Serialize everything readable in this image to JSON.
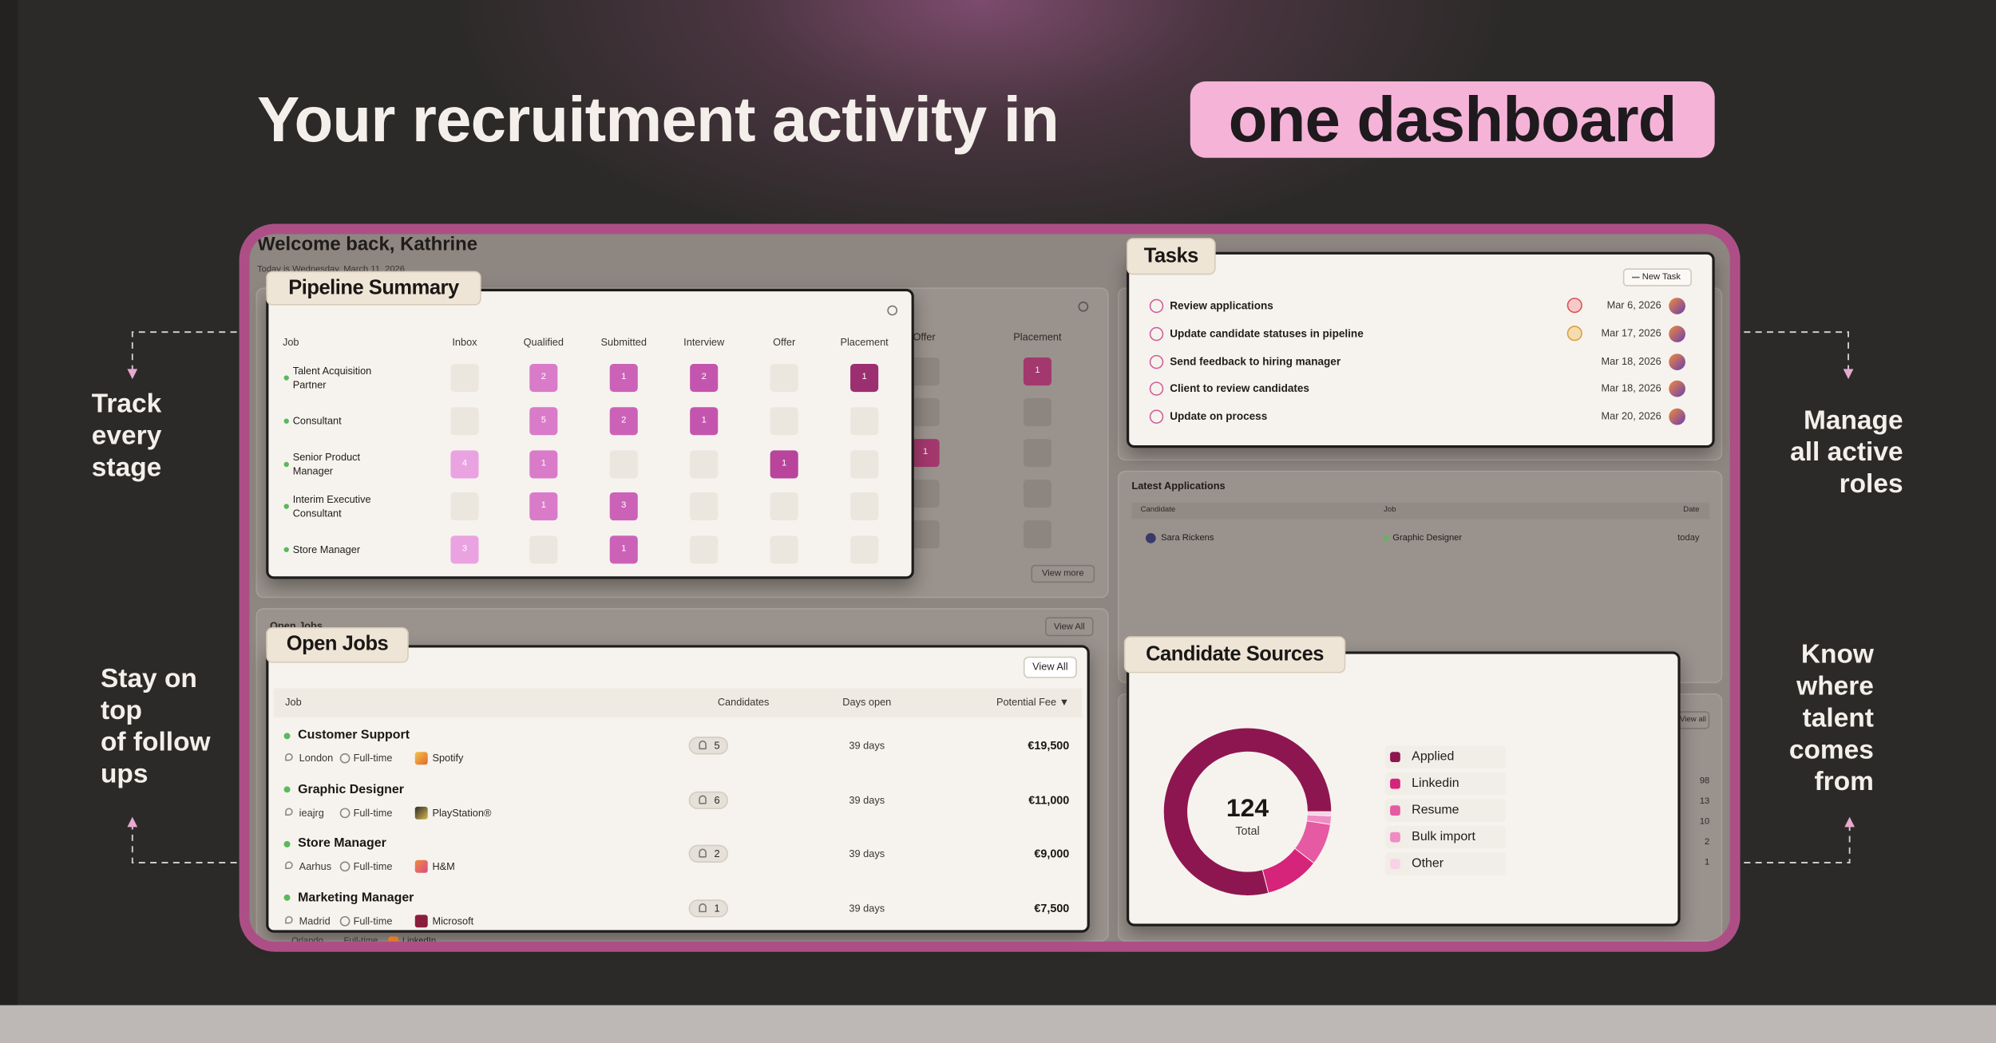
{
  "headline": "Your recruitment activity in",
  "headline_highlight": "one dashboard",
  "side_notes": {
    "track": [
      "Track",
      "every",
      "stage"
    ],
    "follow_ups": [
      "Stay on",
      "top",
      "of follow",
      "ups"
    ],
    "roles": [
      "Manage",
      "all active",
      "roles"
    ],
    "talent": [
      "Know",
      "where",
      "talent",
      "comes",
      "from"
    ]
  },
  "dashboard": {
    "welcome": "Welcome back, Kathrine",
    "date": "Today is Wednesday, March 11, 2026",
    "pipeline": {
      "title": "Pipeline Summary",
      "columns": [
        "Job",
        "Inbox",
        "Qualified",
        "Submitted",
        "Interview",
        "Offer",
        "Placement"
      ],
      "rows": [
        {
          "job": "Talent Acquisition Partner",
          "counts": [
            null,
            2,
            1,
            2,
            null,
            1
          ]
        },
        {
          "job": "Consultant",
          "counts": [
            null,
            5,
            2,
            1,
            null,
            null
          ]
        },
        {
          "job": "Senior Product Manager",
          "counts": [
            4,
            1,
            null,
            null,
            1,
            null
          ]
        },
        {
          "job": "Interim Executive Consultant",
          "counts": [
            null,
            1,
            3,
            null,
            null,
            null
          ]
        },
        {
          "job": "Store Manager",
          "counts": [
            3,
            null,
            1,
            null,
            null,
            null
          ]
        }
      ],
      "view_more": "View more"
    },
    "tasks": {
      "title": "Tasks",
      "new_task": "New Task",
      "items": [
        {
          "label": "Review applications",
          "date": "Mar 6, 2026"
        },
        {
          "label": "Update candidate statuses in pipeline",
          "date": "Mar 17, 2026"
        },
        {
          "label": "Send feedback to hiring manager",
          "date": "Mar 18, 2026"
        },
        {
          "label": "Client to review candidates",
          "date": "Mar 18, 2026"
        },
        {
          "label": "Update on process",
          "date": "Mar 20, 2026"
        }
      ]
    },
    "latest_applications": {
      "title": "Latest Applications",
      "columns": [
        "Candidate",
        "Job",
        "Date"
      ],
      "rows": [
        [
          "Sara Rickens",
          "Graphic Designer",
          "today"
        ]
      ]
    },
    "open_jobs": {
      "title": "Open Jobs",
      "view_all": "View All",
      "columns": [
        "Job",
        "Candidates",
        "Days open",
        "Potential Fee ▼"
      ],
      "rows": [
        {
          "title": "Customer Support",
          "location": "London",
          "type": "Full-time",
          "company": "Spotify",
          "candidates": 5,
          "days_open": "39 days",
          "fee": "€19,500"
        },
        {
          "title": "Graphic Designer",
          "location": "ieajrg",
          "type": "Full-time",
          "company": "PlayStation®",
          "candidates": 6,
          "days_open": "39 days",
          "fee": "€11,000"
        },
        {
          "title": "Store Manager",
          "location": "Aarhus",
          "type": "Full-time",
          "company": "H&M",
          "candidates": 2,
          "days_open": "39 days",
          "fee": "€9,000"
        },
        {
          "title": "Marketing Manager",
          "location": "Madrid",
          "type": "Full-time",
          "company": "Microsoft",
          "candidates": 1,
          "days_open": "39 days",
          "fee": "€7,500"
        }
      ],
      "partial_row": {
        "location": "Orlando",
        "type": "Full-time",
        "company": "LinkedIn"
      }
    },
    "candidate_sources": {
      "title": "Candidate Sources",
      "total": 124,
      "total_label": "Total",
      "view_all": "View all",
      "sources": [
        {
          "name": "Applied",
          "value": 98,
          "color": "#8e1650"
        },
        {
          "name": "Linkedin",
          "value": 13,
          "color": "#d6247a"
        },
        {
          "name": "Resume",
          "value": 10,
          "color": "#e65aa3"
        },
        {
          "name": "Bulk import",
          "value": 2,
          "color": "#ef8cc4"
        },
        {
          "name": "Other",
          "value": 1,
          "color": "#f9d2e8"
        }
      ]
    }
  }
}
